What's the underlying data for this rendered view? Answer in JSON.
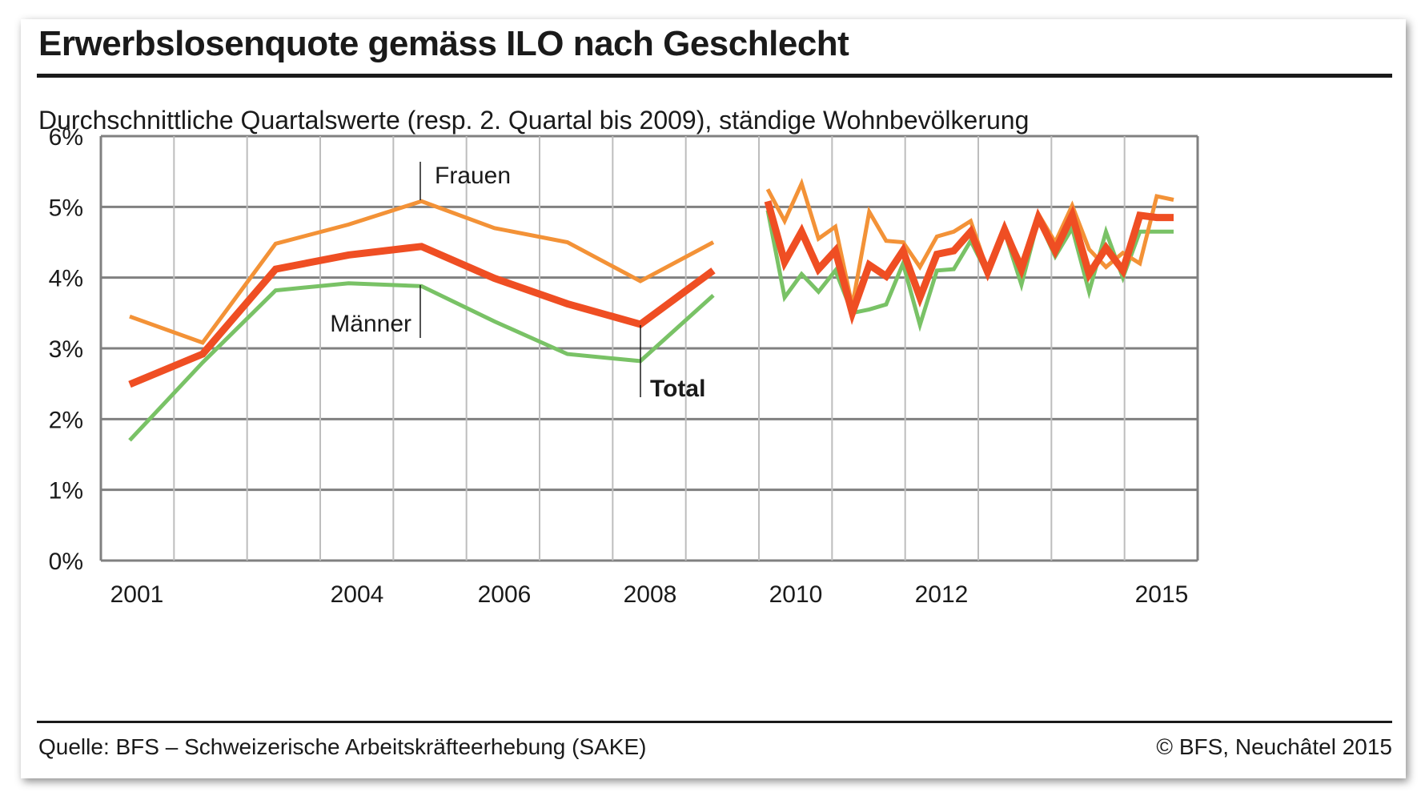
{
  "header": {
    "title": "Erwerbslosenquote gemäss ILO nach Geschlecht",
    "subtitle": "Durchschnittliche Quartalswerte (resp. 2. Quartal bis 2009), ständige Wohnbevölkerung"
  },
  "footer": {
    "source": "Quelle: BFS – Schweizerische Arbeitskräfteerhebung (SAKE)",
    "copyright": "© BFS, Neuchâtel 2015"
  },
  "colors": {
    "frauen": "#f39237",
    "total": "#ef4e23",
    "maenner": "#79c266",
    "grid": "#bdbdbd",
    "axis": "#808080"
  },
  "chart_data": {
    "type": "line",
    "y_unit": "%",
    "ylim": [
      0,
      6
    ],
    "yticks": [
      "0%",
      "1%",
      "2%",
      "3%",
      "4%",
      "5%",
      "6%"
    ],
    "xtick_labels": [
      "2001",
      "2004",
      "2006",
      "2008",
      "2010",
      "2012",
      "2015"
    ],
    "grid": true,
    "annual_segment": {
      "x": [
        2001,
        2002,
        2003,
        2004,
        2005,
        2006,
        2007,
        2008,
        2009
      ],
      "series": [
        {
          "name": "Frauen",
          "values": [
            3.45,
            3.08,
            4.48,
            4.75,
            5.08,
            4.7,
            4.5,
            3.95,
            4.5
          ]
        },
        {
          "name": "Total",
          "values": [
            2.49,
            2.92,
            4.12,
            4.32,
            4.44,
            3.99,
            3.63,
            3.34,
            4.1
          ]
        },
        {
          "name": "Männer",
          "values": [
            1.7,
            2.8,
            3.82,
            3.92,
            3.88,
            3.38,
            2.92,
            2.82,
            3.75
          ]
        }
      ]
    },
    "quarterly_segment": {
      "x": [
        "2010 Q1",
        "2010 Q2",
        "2010 Q3",
        "2010 Q4",
        "2011 Q1",
        "2011 Q2",
        "2011 Q3",
        "2011 Q4",
        "2012 Q1",
        "2012 Q2",
        "2012 Q3",
        "2012 Q4",
        "2013 Q1",
        "2013 Q2",
        "2013 Q3",
        "2013 Q4",
        "2014 Q1",
        "2014 Q2",
        "2014 Q3",
        "2014 Q4",
        "2015 Q1",
        "2015 Q2",
        "2015 Q3",
        "2015 Q4",
        "2016 Q1"
      ],
      "series": [
        {
          "name": "Frauen",
          "values": [
            5.25,
            4.8,
            5.33,
            4.55,
            4.72,
            3.6,
            4.93,
            4.52,
            4.5,
            4.15,
            4.58,
            4.65,
            4.8,
            4.1,
            4.7,
            4.2,
            4.9,
            4.5,
            5.02,
            4.4,
            4.15,
            4.35,
            4.2,
            5.15,
            5.1
          ]
        },
        {
          "name": "Total",
          "values": [
            5.08,
            4.22,
            4.65,
            4.12,
            4.38,
            3.5,
            4.18,
            4.02,
            4.38,
            3.72,
            4.33,
            4.38,
            4.65,
            4.08,
            4.68,
            4.12,
            4.85,
            4.38,
            4.88,
            4.05,
            4.42,
            4.1,
            4.88,
            4.85,
            4.85
          ]
        },
        {
          "name": "Männer",
          "values": [
            4.95,
            3.72,
            4.05,
            3.8,
            4.1,
            3.5,
            3.55,
            3.62,
            4.2,
            3.33,
            4.1,
            4.12,
            4.52,
            4.05,
            4.65,
            3.9,
            4.82,
            4.3,
            4.7,
            3.8,
            4.65,
            4.0,
            4.65,
            4.65,
            4.65
          ]
        }
      ]
    },
    "annotations": [
      {
        "text": "Frauen"
      },
      {
        "text": "Männer"
      },
      {
        "text": "Total"
      }
    ]
  }
}
